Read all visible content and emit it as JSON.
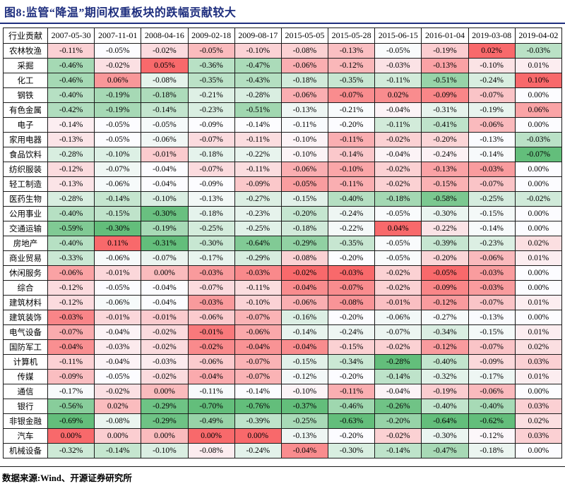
{
  "title": "图8:监管“降温”期间权重板块的跌幅贡献较大",
  "footer": {
    "source_label": "数据来源:Wind、开源证券研究所"
  },
  "accent_color": "#1e2e7e",
  "heatmap_colors": {
    "max": "#F8696B",
    "mid": "#FCFCFF",
    "min": "#63BE7B"
  },
  "chart_data": {
    "type": "heatmap",
    "title": "图8:监管“降温”期间权重板块的跌幅贡献较大",
    "row_header": "行业贡献",
    "value_unit": "%",
    "color_scale": "per-column: min=green #63BE7B, median=white #FCFCFF, max=red #F8696B",
    "columns": [
      "2007-05-30",
      "2007-11-01",
      "2008-04-16",
      "2009-02-18",
      "2009-08-17",
      "2015-05-05",
      "2015-05-28",
      "2015-06-15",
      "2016-01-04",
      "2019-03-08",
      "2019-04-02"
    ],
    "rows": [
      {
        "name": "农林牧渔",
        "values": [
          -0.11,
          -0.05,
          -0.02,
          -0.05,
          -0.1,
          -0.08,
          -0.13,
          -0.05,
          -0.19,
          0.02,
          -0.03
        ]
      },
      {
        "name": "采掘",
        "values": [
          -0.46,
          -0.02,
          0.05,
          -0.36,
          -0.47,
          -0.06,
          -0.12,
          -0.03,
          -0.13,
          -0.1,
          0.01
        ]
      },
      {
        "name": "化工",
        "values": [
          -0.46,
          0.06,
          -0.08,
          -0.35,
          -0.43,
          -0.18,
          -0.35,
          -0.11,
          -0.51,
          -0.24,
          0.1
        ]
      },
      {
        "name": "钢铁",
        "values": [
          -0.4,
          -0.19,
          -0.18,
          -0.21,
          -0.28,
          -0.06,
          -0.07,
          0.02,
          -0.09,
          -0.07,
          0.0
        ]
      },
      {
        "name": "有色金属",
        "values": [
          -0.42,
          -0.19,
          -0.14,
          -0.23,
          -0.51,
          -0.13,
          -0.21,
          -0.04,
          -0.31,
          -0.19,
          0.06
        ]
      },
      {
        "name": "电子",
        "values": [
          -0.14,
          -0.05,
          -0.05,
          -0.09,
          -0.14,
          -0.11,
          -0.2,
          -0.11,
          -0.41,
          -0.06,
          0.0
        ]
      },
      {
        "name": "家用电器",
        "values": [
          -0.13,
          -0.05,
          -0.06,
          -0.07,
          -0.11,
          -0.1,
          -0.11,
          -0.02,
          -0.2,
          -0.13,
          -0.03
        ]
      },
      {
        "name": "食品饮料",
        "values": [
          -0.28,
          -0.1,
          -0.01,
          -0.18,
          -0.22,
          -0.1,
          -0.14,
          -0.04,
          -0.24,
          -0.14,
          -0.07
        ]
      },
      {
        "name": "纺织服装",
        "values": [
          -0.12,
          -0.07,
          -0.04,
          -0.07,
          -0.11,
          -0.06,
          -0.1,
          -0.02,
          -0.13,
          -0.03,
          0.0
        ]
      },
      {
        "name": "轻工制造",
        "values": [
          -0.13,
          -0.06,
          -0.04,
          -0.09,
          -0.09,
          -0.05,
          -0.11,
          -0.02,
          -0.15,
          -0.07,
          0.0
        ]
      },
      {
        "name": "医药生物",
        "values": [
          -0.28,
          -0.14,
          -0.1,
          -0.13,
          -0.27,
          -0.15,
          -0.4,
          -0.18,
          -0.58,
          -0.25,
          -0.02
        ]
      },
      {
        "name": "公用事业",
        "values": [
          -0.4,
          -0.15,
          -0.3,
          -0.18,
          -0.23,
          -0.2,
          -0.24,
          -0.05,
          -0.3,
          -0.15,
          0.0
        ]
      },
      {
        "name": "交通运输",
        "values": [
          -0.59,
          -0.3,
          -0.19,
          -0.25,
          -0.25,
          -0.18,
          -0.22,
          0.04,
          -0.22,
          -0.14,
          0.0
        ]
      },
      {
        "name": "房地产",
        "values": [
          -0.4,
          0.11,
          -0.31,
          -0.3,
          -0.64,
          -0.29,
          -0.35,
          -0.05,
          -0.39,
          -0.23,
          0.02
        ]
      },
      {
        "name": "商业贸易",
        "values": [
          -0.33,
          -0.06,
          -0.07,
          -0.17,
          -0.29,
          -0.08,
          -0.2,
          -0.05,
          -0.2,
          -0.06,
          0.01
        ]
      },
      {
        "name": "休闲服务",
        "values": [
          -0.06,
          -0.01,
          0.0,
          -0.03,
          -0.03,
          -0.02,
          -0.03,
          -0.02,
          -0.05,
          -0.03,
          0.0
        ]
      },
      {
        "name": "综合",
        "values": [
          -0.12,
          -0.05,
          -0.04,
          -0.07,
          -0.11,
          -0.04,
          -0.07,
          -0.02,
          -0.09,
          -0.03,
          0.0
        ]
      },
      {
        "name": "建筑材料",
        "values": [
          -0.12,
          -0.06,
          -0.04,
          -0.03,
          -0.1,
          -0.06,
          -0.08,
          -0.01,
          -0.12,
          -0.07,
          0.01
        ]
      },
      {
        "name": "建筑装饰",
        "values": [
          -0.03,
          -0.01,
          -0.01,
          -0.06,
          -0.07,
          -0.16,
          -0.2,
          -0.06,
          -0.27,
          -0.13,
          0.0
        ]
      },
      {
        "name": "电气设备",
        "values": [
          -0.07,
          -0.04,
          -0.02,
          -0.01,
          -0.06,
          -0.14,
          -0.24,
          -0.07,
          -0.34,
          -0.15,
          0.01
        ]
      },
      {
        "name": "国防军工",
        "values": [
          -0.04,
          -0.03,
          -0.02,
          -0.02,
          -0.04,
          -0.04,
          -0.15,
          -0.02,
          -0.12,
          -0.07,
          0.02
        ]
      },
      {
        "name": "计算机",
        "values": [
          -0.11,
          -0.04,
          -0.03,
          -0.06,
          -0.07,
          -0.15,
          -0.34,
          -0.28,
          -0.4,
          -0.09,
          0.03
        ]
      },
      {
        "name": "传媒",
        "values": [
          -0.09,
          -0.05,
          -0.02,
          -0.04,
          -0.07,
          -0.12,
          -0.2,
          -0.14,
          -0.32,
          -0.17,
          0.01
        ]
      },
      {
        "name": "通信",
        "values": [
          -0.17,
          -0.02,
          0.0,
          -0.11,
          -0.14,
          -0.1,
          -0.11,
          -0.04,
          -0.19,
          -0.06,
          0.0
        ]
      },
      {
        "name": "银行",
        "values": [
          -0.56,
          0.02,
          -0.29,
          -0.7,
          -0.76,
          -0.37,
          -0.46,
          -0.26,
          -0.4,
          -0.4,
          0.03
        ]
      },
      {
        "name": "非银金融",
        "values": [
          -0.69,
          -0.08,
          -0.29,
          -0.49,
          -0.39,
          -0.25,
          -0.63,
          -0.2,
          -0.64,
          -0.62,
          0.02
        ]
      },
      {
        "name": "汽车",
        "values": [
          0.0,
          0.0,
          0.0,
          0.0,
          0.0,
          -0.13,
          -0.2,
          -0.02,
          -0.3,
          -0.12,
          0.03
        ]
      },
      {
        "name": "机械设备",
        "values": [
          -0.32,
          -0.14,
          -0.1,
          -0.08,
          -0.24,
          -0.04,
          -0.3,
          -0.14,
          -0.47,
          -0.18,
          0.0
        ]
      }
    ]
  }
}
